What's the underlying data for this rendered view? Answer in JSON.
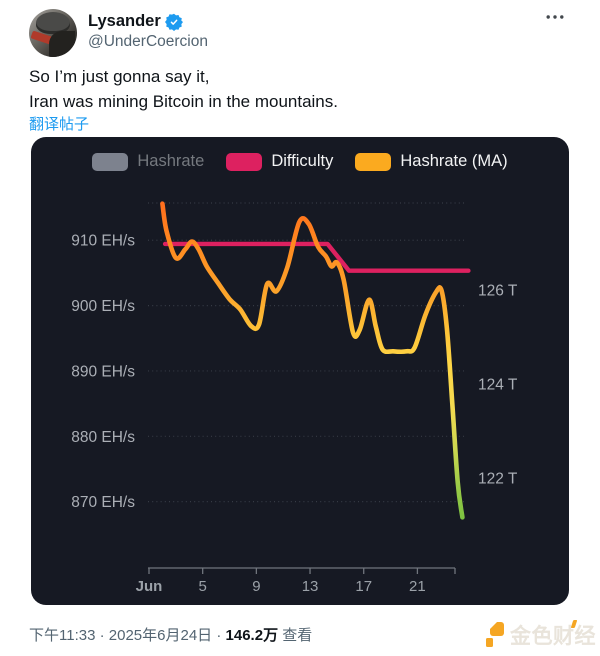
{
  "tweet": {
    "author_name": "Lysander",
    "handle": "@UnderCoercion",
    "text_lines": [
      "So I’m just gonna say it,",
      "Iran was mining Bitcoin in the mountains."
    ],
    "translate_label": "翻译帖子"
  },
  "footer": {
    "time": "下午11:33",
    "sep": "·",
    "date": "2025年6月24日",
    "views_count": "146.2万",
    "views_label": "查看",
    "watermark_text": "金色财经",
    "watermark_color": "#f5a623"
  },
  "colors": {
    "accent_blue": "#1d9bf0",
    "text_primary": "#0f1419",
    "text_secondary": "#536471",
    "chart_background": "#161923"
  },
  "chart_data": {
    "type": "line",
    "background": "#161923",
    "grid": true,
    "legend_position": "top",
    "legend": [
      {
        "label": "Hashrate",
        "color": "#7d828e",
        "active": false
      },
      {
        "label": "Difficulty",
        "color": "#dd2160",
        "active": true
      },
      {
        "label": "Hashrate (MA)",
        "color": "#fbaa1f",
        "active": true
      }
    ],
    "x_axis": {
      "range": [
        1,
        24.8
      ],
      "ticks": [
        {
          "label": "Jun",
          "value": 1,
          "bold": true
        },
        {
          "label": "5",
          "value": 5
        },
        {
          "label": "9",
          "value": 9
        },
        {
          "label": "13",
          "value": 13
        },
        {
          "label": "17",
          "value": 17
        },
        {
          "label": "21",
          "value": 21
        }
      ]
    },
    "y_left": {
      "unit": "EH/s",
      "range": [
        860,
        915.7
      ],
      "ticks": [
        {
          "label": "910 EH/s",
          "value": 910
        },
        {
          "label": "900 EH/s",
          "value": 900
        },
        {
          "label": "890 EH/s",
          "value": 890
        },
        {
          "label": "880 EH/s",
          "value": 880
        },
        {
          "label": "870 EH/s",
          "value": 870
        }
      ],
      "top_boundary": 915.7
    },
    "y_right": {
      "unit": "T",
      "ticks": [
        {
          "label": "126 T",
          "value": 126
        },
        {
          "label": "124 T",
          "value": 124
        },
        {
          "label": "122 T",
          "value": 122
        }
      ]
    },
    "series": [
      {
        "name": "Difficulty",
        "axis": "right",
        "type": "step",
        "color": "#dd2160",
        "points": [
          [
            2.2,
            126.98
          ],
          [
            14.3,
            126.98
          ],
          [
            15.9,
            126.41
          ],
          [
            24.8,
            126.41
          ]
        ]
      },
      {
        "name": "Hashrate (MA)",
        "axis": "left",
        "type": "smooth",
        "gradient": [
          [
            0,
            "#ff6a1c"
          ],
          [
            0.15,
            "#ff8a20"
          ],
          [
            0.3,
            "#fba42b"
          ],
          [
            0.42,
            "#fdc338"
          ],
          [
            0.52,
            "#ffd747"
          ],
          [
            0.66,
            "#f2da50"
          ],
          [
            0.78,
            "#cdd850"
          ],
          [
            0.9,
            "#9aca47"
          ],
          [
            1,
            "#7cc241"
          ]
        ],
        "points": [
          [
            2,
            915.6
          ],
          [
            2.3,
            911.5
          ],
          [
            3,
            907.3
          ],
          [
            3.7,
            908.6
          ],
          [
            4.2,
            909.8
          ],
          [
            4.7,
            908.6
          ],
          [
            5.3,
            906
          ],
          [
            6.1,
            903.6
          ],
          [
            7,
            901
          ],
          [
            7.8,
            899.4
          ],
          [
            8.6,
            896.9
          ],
          [
            9.2,
            897.1
          ],
          [
            9.8,
            903.3
          ],
          [
            10.5,
            902.2
          ],
          [
            11.3,
            905.8
          ],
          [
            12.2,
            912.8
          ],
          [
            12.9,
            912.5
          ],
          [
            13.6,
            909
          ],
          [
            14.2,
            907.5
          ],
          [
            14.6,
            906
          ],
          [
            15,
            906.6
          ],
          [
            15.5,
            904
          ],
          [
            16.2,
            895.9
          ],
          [
            16.7,
            896.3
          ],
          [
            17.4,
            900.9
          ],
          [
            17.9,
            896.8
          ],
          [
            18.4,
            893.3
          ],
          [
            19.2,
            893
          ],
          [
            20.2,
            893
          ],
          [
            20.8,
            893.6
          ],
          [
            21.6,
            898.6
          ],
          [
            22.4,
            902.1
          ],
          [
            22.8,
            902.3
          ],
          [
            23.2,
            896.5
          ],
          [
            23.6,
            885
          ],
          [
            24,
            873
          ],
          [
            24.35,
            867.6
          ]
        ]
      }
    ]
  }
}
